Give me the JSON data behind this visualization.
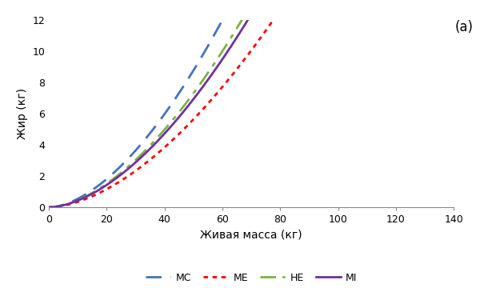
{
  "xlabel": "Живая масса (кг)",
  "ylabel": "Жир (кг)",
  "annotation": "(a)",
  "xlim": [
    0,
    140
  ],
  "ylim": [
    0,
    12
  ],
  "xticks": [
    0,
    20,
    40,
    60,
    80,
    100,
    120,
    140
  ],
  "yticks": [
    0,
    2,
    4,
    6,
    8,
    10,
    12
  ],
  "curves": [
    {
      "label": "MC",
      "color": "#4472C4",
      "linestyle": "dashed",
      "linewidth": 2.0,
      "a": 0.0105,
      "b": 1.72
    },
    {
      "label": "ME",
      "color": "#FF0000",
      "linestyle": "dotted",
      "linewidth": 2.0,
      "a": 0.00675,
      "b": 1.72
    },
    {
      "label": "HE",
      "color": "#7CB342",
      "linestyle": "dashdot",
      "linewidth": 2.0,
      "a": 0.00875,
      "b": 1.72
    },
    {
      "label": "MI",
      "color": "#7030A0",
      "linestyle": "solid",
      "linewidth": 2.0,
      "a": 0.0083,
      "b": 1.72
    }
  ],
  "legend_fontsize": 9,
  "axis_label_fontsize": 10,
  "tick_fontsize": 9,
  "annotation_fontsize": 12,
  "background_color": "#ffffff"
}
